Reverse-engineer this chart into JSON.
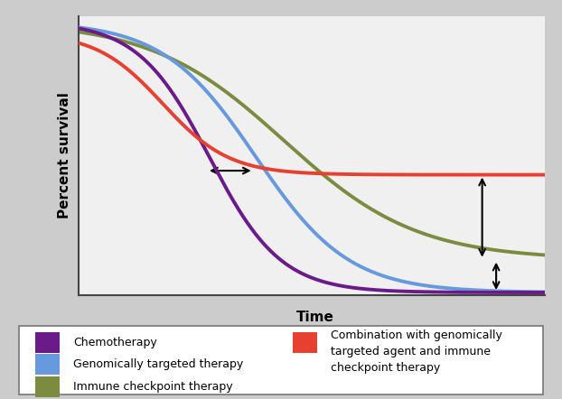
{
  "xlabel": "Time",
  "ylabel": "Percent survival",
  "background_color": "#cccccc",
  "plot_bg_color": "#f0f0f0",
  "lines": {
    "chemotherapy": {
      "color": "#6B1A8A",
      "label": "Chemotherapy",
      "inflection": 0.28,
      "steepness": 13,
      "floor": 0.01
    },
    "genomic": {
      "color": "#6699DD",
      "label": "Genomically targeted therapy",
      "inflection": 0.38,
      "steepness": 10,
      "floor": 0.01
    },
    "immune": {
      "color": "#7B8C40",
      "label": "Immune checkpoint therapy",
      "inflection": 0.44,
      "steepness": 7,
      "floor": 0.13
    },
    "combination": {
      "color": "#E84030",
      "label": "Combination with genomically\ntargeted agent and immune\ncheckpoint therapy",
      "floor": 0.44
    }
  },
  "legend_fontsize": 9,
  "axis_label_fontsize": 11
}
